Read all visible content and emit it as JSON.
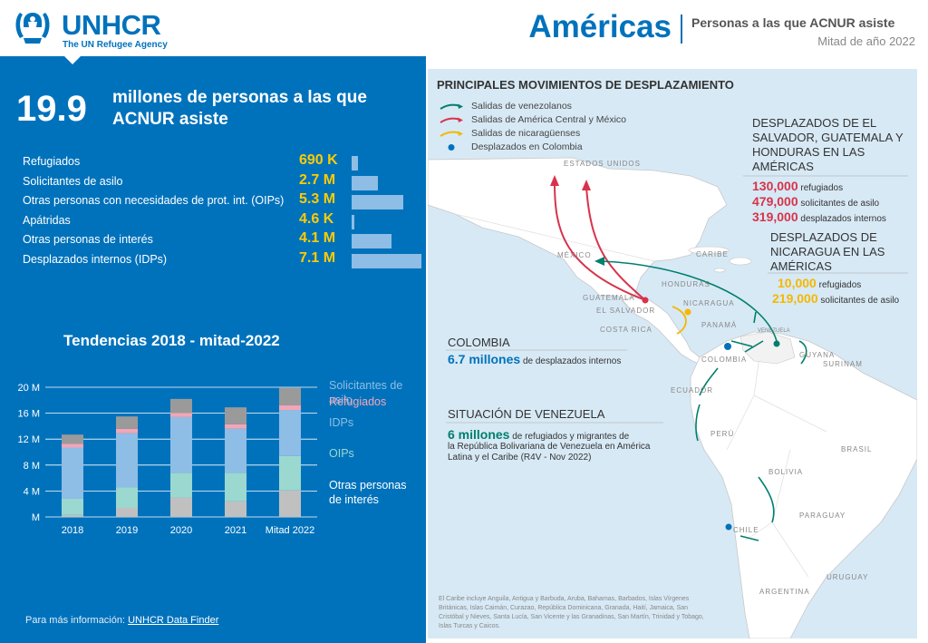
{
  "header": {
    "logo_word": "UNHCR",
    "logo_sub": "The UN Refugee Agency",
    "region": "Américas",
    "subtitle": "Personas a las que ACNUR asiste",
    "date": "Mitad de año 2022",
    "brand_color": "#0072bc"
  },
  "summary": {
    "number": "19.9",
    "label": "millones de personas a las que ACNUR asiste"
  },
  "populations": [
    {
      "label": "Refugiados",
      "value": "690 K",
      "millions": 0.69
    },
    {
      "label": "Solicitantes de asilo",
      "value": "2.7 M",
      "millions": 2.7
    },
    {
      "label": "Otras personas con necesidades de prot. int. (OIPs)",
      "value": "5.3 M",
      "millions": 5.3
    },
    {
      "label": "Apátridas",
      "value": "4.6 K",
      "millions": 0.0046
    },
    {
      "label": "Otras personas de interés",
      "value": "4.1 M",
      "millions": 4.1
    },
    {
      "label": "Desplazados internos (IDPs)",
      "value": "7.1 M",
      "millions": 7.1
    }
  ],
  "trend_title": "Tendencias 2018 - mitad-2022",
  "chart_data": {
    "type": "bar",
    "stacked": true,
    "categories": [
      "2018",
      "2019",
      "2020",
      "2021",
      "Mitad 2022"
    ],
    "yticks": [
      "20 M",
      "16 M",
      "12 M",
      "8 M",
      "4 M",
      "M"
    ],
    "ylim": [
      0,
      20
    ],
    "series": [
      {
        "name": "Otras personas de interés",
        "color": "#c0c0c0",
        "values": [
          0.3,
          1.4,
          3.0,
          2.4,
          4.1
        ]
      },
      {
        "name": "OIPs",
        "color": "#9bd8cf",
        "values": [
          2.5,
          3.2,
          3.8,
          4.4,
          5.3
        ]
      },
      {
        "name": "IDPs",
        "color": "#8ebde5",
        "values": [
          7.9,
          8.3,
          8.6,
          6.8,
          7.1
        ]
      },
      {
        "name": "Refugiados",
        "color": "#f4a5b6",
        "values": [
          0.6,
          0.7,
          0.6,
          0.7,
          0.7
        ]
      },
      {
        "name": "Solicitantes de asilo",
        "color": "#9a9a9a",
        "values": [
          1.4,
          1.9,
          2.2,
          2.6,
          2.7
        ]
      }
    ],
    "legend_labels": [
      "Solicitantes de asilo",
      "Refugiados",
      "IDPs",
      "OIPs",
      "Otras personas de interés"
    ]
  },
  "more_info": {
    "text": "Para más información:",
    "link": "UNHCR Data Finder"
  },
  "map": {
    "title": "PRINCIPALES MOVIMIENTOS DE DESPLAZAMIENTO",
    "legend": [
      {
        "label": "Salidas de venezolanos",
        "color": "#007f6e"
      },
      {
        "label": "Salidas de América Central y México",
        "color": "#d8334a"
      },
      {
        "label": "Salidas de nicaragüenses",
        "color": "#f5b700"
      },
      {
        "label": "Desplazados en Colombia",
        "color": "#0072bc"
      }
    ],
    "country_labels": [
      "ESTADOS UNIDOS",
      "MÉXICO",
      "CARIBE",
      "HONDURAS",
      "GUATEMALA",
      "NICARAGUA",
      "EL SALVADOR",
      "PANAMÁ",
      "COSTA RICA",
      "COLOMBIA",
      "ECUADOR",
      "PERÚ",
      "BRASIL",
      "BOLIVIA",
      "PARAGUAY",
      "CHILE",
      "URUGUAY",
      "ARGENTINA",
      "GUYANA",
      "SURINAM",
      "VENEZUELA"
    ],
    "central": {
      "head": "DESPLAZADOS DE EL SALVADOR, GUATEMALA Y HONDURAS EN LAS AMÉRICAS",
      "lines": [
        {
          "value": "130,000",
          "label": "refugiados"
        },
        {
          "value": "479,000",
          "label": "solicitantes de asilo"
        },
        {
          "value": "319,000",
          "label": "desplazados internos"
        }
      ]
    },
    "nicaragua": {
      "head": "DESPLAZADOS DE NICARAGUA EN LAS AMÉRICAS",
      "lines": [
        {
          "value": "10,000",
          "label": "refugiados"
        },
        {
          "value": "219,000",
          "label": "solicitantes de asilo"
        }
      ]
    },
    "colombia": {
      "head": "COLOMBIA",
      "value": "6.7 millones",
      "label": "de desplazados internos"
    },
    "venezuela": {
      "head": "SITUACIÓN DE VENEZUELA",
      "value": "6 millones",
      "label1": "de refugiados y migrantes de",
      "label2": "la República Bolivariana de Venezuela en América",
      "label3": "Latina y el Caribe (R4V - Nov 2022)"
    },
    "caribbean_note": "El Caribe incluye Anguila, Antigua y Barbuda, Aruba, Bahamas, Barbados, Islas Vírgenes Británicas, Islas Caimán, Curazao, República Dominicana, Granada, Haití, Jamaica, San Cristóbal y Nieves, Santa Lucía, San Vicente y las Granadinas, San Martín, Trinidad y Tobago, Islas Turcas y Caicos."
  }
}
